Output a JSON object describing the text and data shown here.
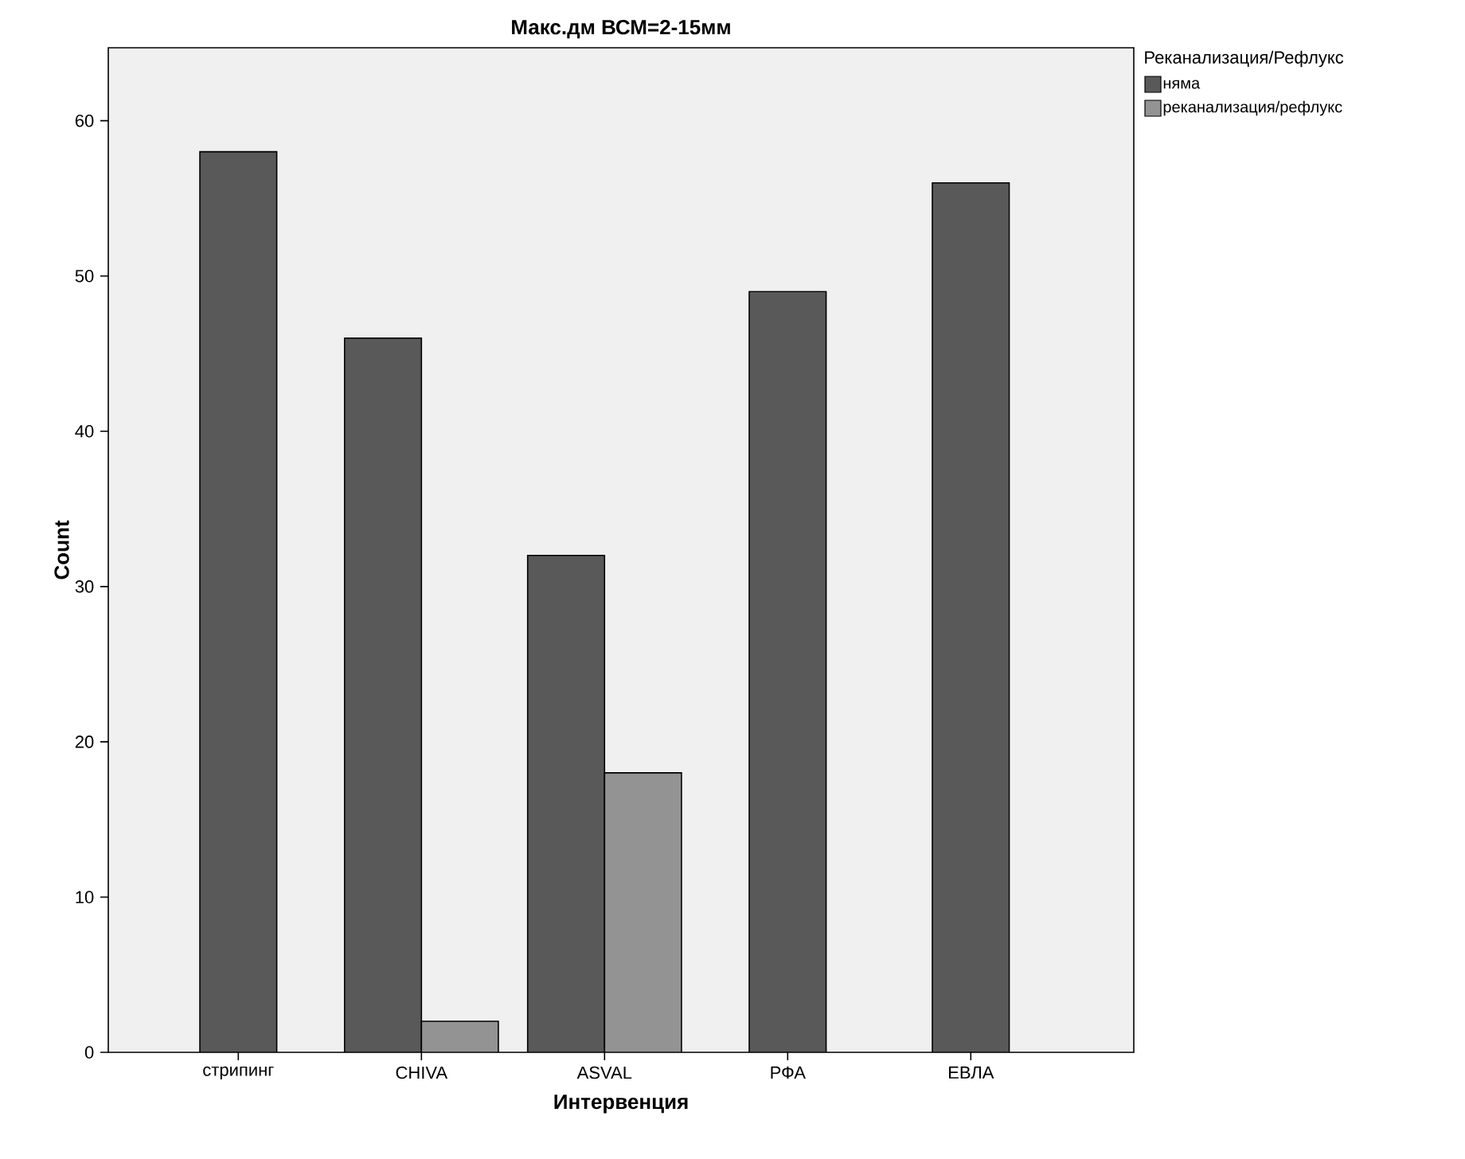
{
  "chart_data": {
    "type": "bar",
    "title": "Макс.дм ВСМ=2-15мм",
    "xlabel": "Интервенция",
    "ylabel": "Count",
    "legend_title": "Реканализация/Рефлукс",
    "categories": [
      "стрипинг",
      "CHIVA",
      "ASVAL",
      "РФА",
      "ЕВЛА"
    ],
    "series": [
      {
        "name": "няма",
        "color": "#595959",
        "values": [
          58,
          46,
          32,
          49,
          56
        ]
      },
      {
        "name": "реканализация/рефлукс",
        "color": "#939393",
        "values": [
          null,
          2,
          18,
          null,
          null
        ]
      }
    ],
    "ylim": [
      0,
      64.7
    ],
    "yticks": [
      0,
      10,
      20,
      30,
      40,
      50,
      60
    ],
    "legend": "top right"
  }
}
